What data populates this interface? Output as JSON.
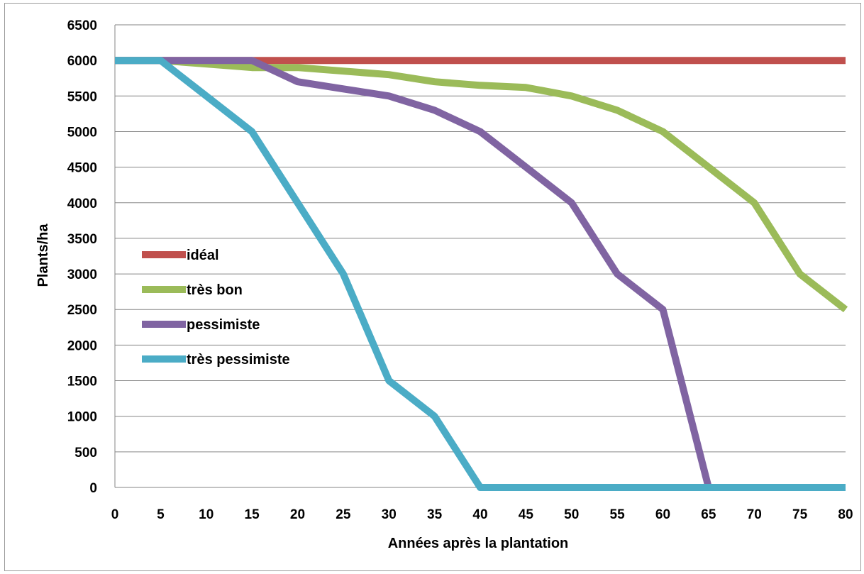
{
  "chart_data": {
    "type": "line",
    "xlabel": "Années après la plantation",
    "ylabel": "Plants/ha",
    "xlim": [
      0,
      80
    ],
    "ylim": [
      0,
      6500
    ],
    "x_ticks": [
      "0",
      "5",
      "10",
      "15",
      "20",
      "25",
      "30",
      "35",
      "40",
      "45",
      "50",
      "55",
      "60",
      "65",
      "70",
      "75",
      "80"
    ],
    "y_ticks": [
      "0",
      "500",
      "1000",
      "1500",
      "2000",
      "2500",
      "3000",
      "3500",
      "4000",
      "4500",
      "5000",
      "5500",
      "6000",
      "6500"
    ],
    "grid": "horizontal",
    "legend_position": "left",
    "series": [
      {
        "name": "idéal",
        "color": "#c0504d",
        "points": [
          [
            0,
            6000
          ],
          [
            80,
            6000
          ]
        ]
      },
      {
        "name": "très bon",
        "color": "#9bbb59",
        "points": [
          [
            0,
            6000
          ],
          [
            5,
            6000
          ],
          [
            10,
            5950
          ],
          [
            15,
            5900
          ],
          [
            20,
            5900
          ],
          [
            25,
            5850
          ],
          [
            30,
            5800
          ],
          [
            35,
            5700
          ],
          [
            40,
            5650
          ],
          [
            45,
            5620
          ],
          [
            50,
            5500
          ],
          [
            55,
            5300
          ],
          [
            60,
            5000
          ],
          [
            65,
            4500
          ],
          [
            70,
            4000
          ],
          [
            75,
            3000
          ],
          [
            80,
            2500
          ]
        ]
      },
      {
        "name": "pessimiste",
        "color": "#8064a2",
        "points": [
          [
            0,
            6000
          ],
          [
            5,
            6000
          ],
          [
            10,
            6000
          ],
          [
            15,
            6000
          ],
          [
            20,
            5700
          ],
          [
            25,
            5600
          ],
          [
            30,
            5500
          ],
          [
            35,
            5300
          ],
          [
            40,
            5000
          ],
          [
            45,
            4500
          ],
          [
            50,
            4000
          ],
          [
            55,
            3000
          ],
          [
            60,
            2500
          ],
          [
            65,
            0
          ],
          [
            70,
            0
          ],
          [
            75,
            0
          ],
          [
            80,
            0
          ]
        ]
      },
      {
        "name": "très pessimiste",
        "color": "#4bacc6",
        "points": [
          [
            0,
            6000
          ],
          [
            5,
            6000
          ],
          [
            10,
            5500
          ],
          [
            15,
            5000
          ],
          [
            20,
            4000
          ],
          [
            25,
            3000
          ],
          [
            30,
            1500
          ],
          [
            35,
            1000
          ],
          [
            40,
            0
          ],
          [
            45,
            0
          ],
          [
            50,
            0
          ],
          [
            55,
            0
          ],
          [
            60,
            0
          ],
          [
            65,
            0
          ],
          [
            70,
            0
          ],
          [
            75,
            0
          ],
          [
            80,
            0
          ]
        ]
      }
    ]
  }
}
